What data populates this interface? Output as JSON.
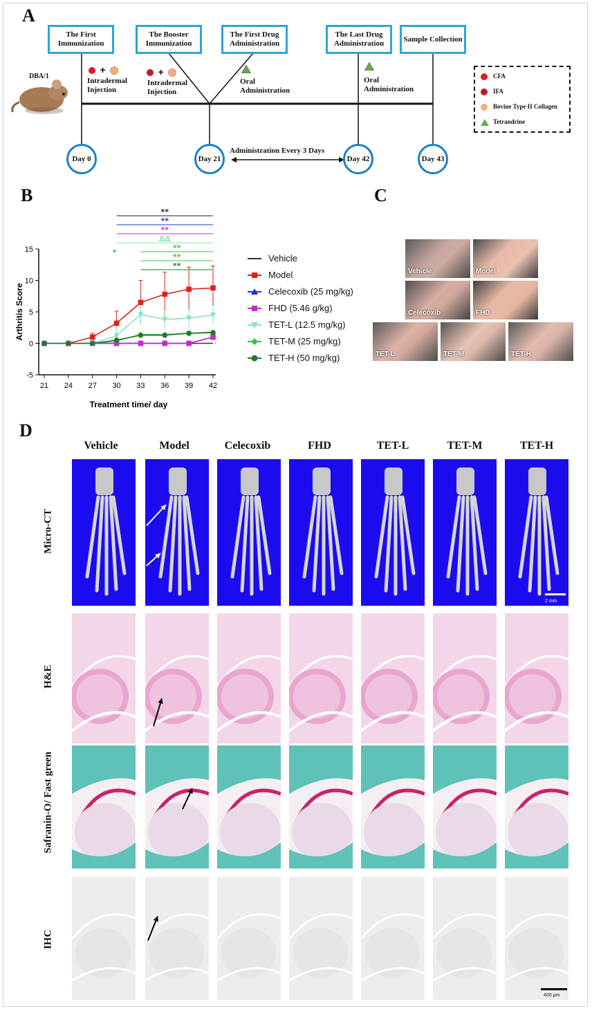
{
  "panels": {
    "a": "A",
    "b": "B",
    "c": "C",
    "d": "D"
  },
  "timeline": {
    "animal": "DBA/1",
    "boxes": [
      "The First Immunization",
      "The Booster Immunization",
      "The First Drug Administration",
      "The Last Drug Administration",
      "Sample Collection"
    ],
    "injection1": "Intradermal Injection",
    "injection2": "Intradermal Injection",
    "oral1": "Oral Administration",
    "oral2": "Oral Administration",
    "days": [
      "Day 0",
      "Day 21",
      "Day 42",
      "Day 43"
    ],
    "interval": "Administration  Every  3  Days",
    "legend": [
      "CFA",
      "IFA",
      "Bovine Type II Collagen",
      "Tetrandrine"
    ]
  },
  "colors": {
    "cfa": "#e02020",
    "ifa": "#b51e2a",
    "collagen": "#f0b07a",
    "tetrandrine": "#6aa84f",
    "frame": "#2aa6d9",
    "day": "#1c7fc8"
  },
  "chart_data": {
    "type": "line",
    "xlabel": "Treatment time/ day",
    "ylabel": "Arthritis Score",
    "x": [
      21,
      24,
      27,
      30,
      33,
      36,
      39,
      42
    ],
    "ylim": [
      -5,
      15
    ],
    "yticks": [
      -5,
      0,
      5,
      10,
      15
    ],
    "series": [
      {
        "name": "Vehicle",
        "color": "#333333",
        "marker": "none",
        "values": [
          0,
          0,
          0,
          0,
          0,
          0,
          0,
          0
        ]
      },
      {
        "name": "Model",
        "color": "#e0201b",
        "marker": "square",
        "values": [
          0,
          0,
          1,
          3.2,
          6.5,
          7.8,
          8.6,
          8.8
        ]
      },
      {
        "name": "Celecoxib (25 mg/kg)",
        "color": "#2233c8",
        "marker": "triangle",
        "values": [
          0,
          0,
          0,
          0,
          0,
          0,
          0,
          1
        ]
      },
      {
        "name": "FHD (5.46 g/kg)",
        "color": "#c02ccf",
        "marker": "square",
        "values": [
          0,
          0,
          0,
          0,
          0,
          0,
          0,
          1
        ]
      },
      {
        "name": "TET-L (12.5 mg/kg)",
        "color": "#8be3b6",
        "marker": "triangle-down",
        "values": [
          0,
          0,
          0,
          1.2,
          4.6,
          3.8,
          4,
          4.5
        ]
      },
      {
        "name": "TET-M (25 mg/kg)",
        "color": "#3fbf4a",
        "marker": "diamond",
        "values": [
          0,
          0,
          0,
          0.4,
          1.4,
          1.4,
          1.6,
          1.8
        ]
      },
      {
        "name": "TET-H (50 mg/kg)",
        "color": "#1f7a2a",
        "marker": "circle",
        "values": [
          0,
          0,
          0,
          0.5,
          1.3,
          1.3,
          1.6,
          1.7
        ]
      }
    ],
    "annotations": [
      "**",
      "**",
      "**",
      "ΔΔ",
      "**",
      "**",
      "**",
      "*"
    ]
  },
  "photos": [
    "Vehicle",
    "Model",
    "Celecoxib",
    "FHD",
    "TET-L",
    "TET-M",
    "TET-H"
  ],
  "panel_d": {
    "columns": [
      "Vehicle",
      "Model",
      "Celecoxib",
      "FHD",
      "TET-L",
      "TET-M",
      "TET-H"
    ],
    "rows": [
      "Micro-CT",
      "H&E",
      "Safranin-O/ Fast green",
      "IHC"
    ],
    "scale_ct": "2 mm",
    "scale_ihc": "400 μm"
  }
}
